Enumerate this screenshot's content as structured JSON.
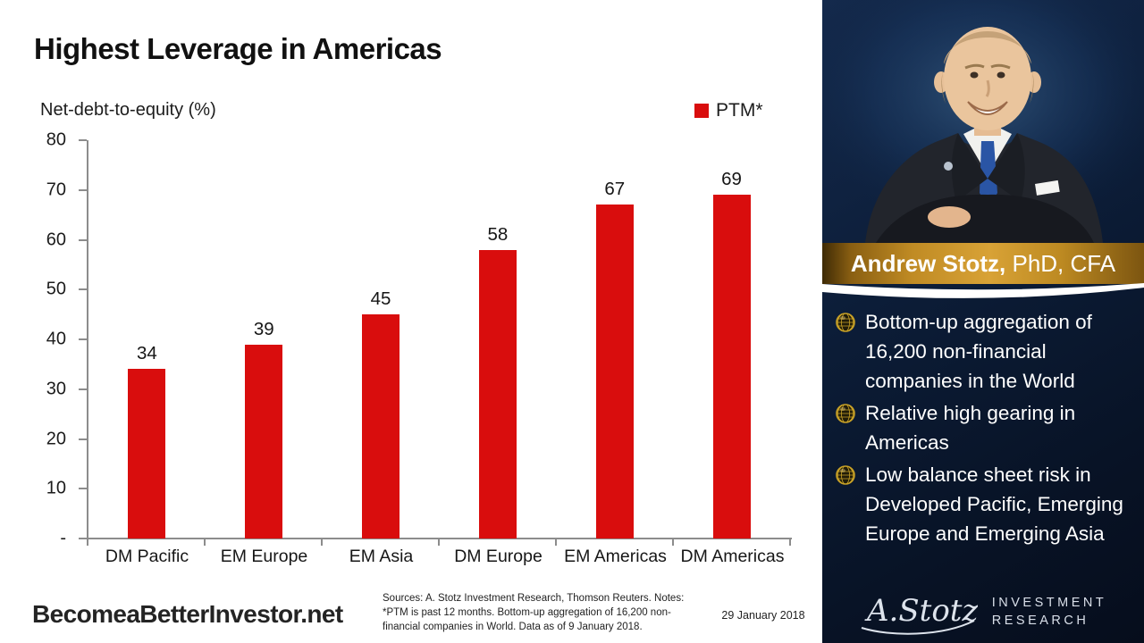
{
  "slide": {
    "title": "Highest Leverage in Americas",
    "date": "29 January 2018",
    "footer_logo": "BecomeaBetterInvestor.net",
    "sources_lines": [
      "Sources: A. Stotz Investment Research, Thomson Reuters. Notes:",
      "*PTM is past 12 months. Bottom-up aggregation of 16,200 non-",
      "financial companies in World. Data as of 9 January 2018."
    ]
  },
  "chart_data": {
    "type": "bar",
    "title": "Highest Leverage in Americas",
    "axis_title": "Net-debt-to-equity (%)",
    "categories": [
      "DM Pacific",
      "EM Europe",
      "EM Asia",
      "DM Europe",
      "EM Americas",
      "DM Americas"
    ],
    "series": [
      {
        "name": "PTM*",
        "values": [
          34,
          39,
          45,
          58,
          67,
          69
        ]
      }
    ],
    "values": [
      34,
      39,
      45,
      58,
      67,
      69
    ],
    "legend": {
      "label": "PTM*",
      "position": "top-right"
    },
    "ylim": [
      0,
      80
    ],
    "yticks": [
      {
        "value": 0,
        "label": "-"
      },
      {
        "value": 10,
        "label": "10"
      },
      {
        "value": 20,
        "label": "20"
      },
      {
        "value": 30,
        "label": "30"
      },
      {
        "value": 40,
        "label": "40"
      },
      {
        "value": 50,
        "label": "50"
      },
      {
        "value": 60,
        "label": "60"
      },
      {
        "value": 70,
        "label": "70"
      },
      {
        "value": 80,
        "label": "80"
      }
    ],
    "grid": false,
    "bar_color": "#d90d0d",
    "axis_color": "#8c8c8c"
  },
  "sidebar": {
    "name_bold": "Andrew Stotz,",
    "name_rest": " PhD, CFA",
    "bullets": [
      "Bottom-up aggregation of 16,200 non-financial companies in the World",
      "Relative high gearing in Americas",
      "Low balance sheet risk in Developed Pacific, Emerging Europe and Emerging Asia"
    ],
    "brand": {
      "signature": "A.Stotz",
      "wordmark_lines": [
        "INVESTMENT",
        "RESEARCH"
      ]
    },
    "colors": {
      "background_navy": "#0c1d38",
      "banner_gold": "#d8a236",
      "bullet_gold": "#c9a227"
    }
  }
}
